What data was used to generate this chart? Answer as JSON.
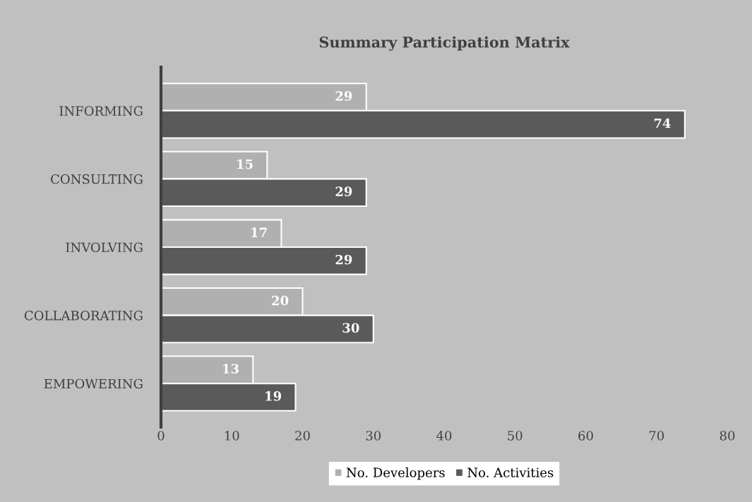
{
  "chart_data": {
    "type": "bar",
    "orientation": "horizontal",
    "title": "Summary Participation Matrix",
    "categories": [
      "INFORMING",
      "CONSULTING",
      "INVOLVING",
      "COLLABORATING",
      "EMPOWERING"
    ],
    "series": [
      {
        "name": "No. Developers",
        "color": "#b0b0b0",
        "values": [
          29,
          15,
          17,
          20,
          13
        ]
      },
      {
        "name": "No. Activities",
        "color": "#5a5a5a",
        "values": [
          74,
          29,
          29,
          30,
          19
        ]
      }
    ],
    "xlim": [
      0,
      80
    ],
    "xticks": [
      0,
      10,
      20,
      30,
      40,
      50,
      60,
      70,
      80
    ],
    "data_labels": true,
    "grid": false,
    "legend": "bottom"
  }
}
